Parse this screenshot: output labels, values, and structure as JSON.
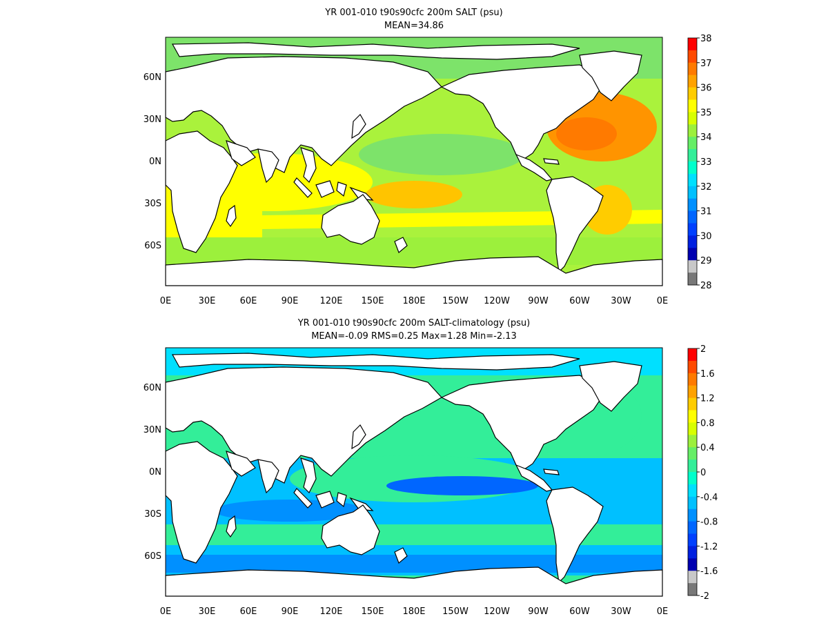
{
  "panels": [
    {
      "title": "YR 001-010 t90s90cfc 200m SALT (psu)",
      "stats": "MEAN=34.86",
      "x_ticks": [
        "0E",
        "30E",
        "60E",
        "90E",
        "120E",
        "150E",
        "180E",
        "150W",
        "120W",
        "90W",
        "60W",
        "30W",
        "0E"
      ],
      "y_ticks": [
        "60N",
        "30N",
        "0N",
        "30S",
        "60S"
      ],
      "colorbar": {
        "labels": [
          "38",
          "37",
          "36",
          "35",
          "34",
          "33",
          "32",
          "31",
          "30",
          "29",
          "28"
        ],
        "colors_top_to_bottom": [
          "#ff0000",
          "#ff4a00",
          "#ff7a00",
          "#ffa200",
          "#ffcc00",
          "#ffff00",
          "#d8ff00",
          "#9cf03c",
          "#66ee66",
          "#33ee99",
          "#00ffcc",
          "#00e0ff",
          "#00c0ff",
          "#0090ff",
          "#0066ff",
          "#0040ff",
          "#0020e0",
          "#0000b0",
          "#c8c8c8",
          "#787878"
        ]
      },
      "fields": {
        "ocean": "#aaf23c",
        "band_south": "#ffff00",
        "atlantic": "#ff9400",
        "pacific_warm": "#ffc400",
        "arctic": "#7de36a"
      }
    },
    {
      "title": "YR 001-010 t90s90cfc 200m SALT-climatology (psu)",
      "stats": "MEAN=-0.09   RMS=0.25   Max=1.28   Min=-2.13",
      "x_ticks": [
        "0E",
        "30E",
        "60E",
        "90E",
        "120E",
        "150E",
        "180E",
        "150W",
        "120W",
        "90W",
        "60W",
        "30W",
        "0E"
      ],
      "y_ticks": [
        "60N",
        "30N",
        "0N",
        "30S",
        "60S"
      ],
      "colorbar": {
        "labels": [
          "2",
          "1.6",
          "1.2",
          "0.8",
          "0.4",
          "0",
          "-0.4",
          "-0.8",
          "-1.2",
          "-1.6",
          "-2"
        ],
        "colors_top_to_bottom": [
          "#ff0000",
          "#ff4a00",
          "#ff7a00",
          "#ffa200",
          "#ffcc00",
          "#ffff00",
          "#d8ff00",
          "#9cf03c",
          "#66ee66",
          "#33ee99",
          "#00ffcc",
          "#00e0ff",
          "#00c0ff",
          "#0090ff",
          "#0066ff",
          "#0040ff",
          "#0020e0",
          "#0000b0",
          "#c8c8c8",
          "#787878"
        ]
      },
      "fields": {
        "ocean": "#33ee99",
        "band_south": "#0090ff",
        "atlantic": "#00c0ff",
        "pacific_warm": "#0066ff",
        "arctic": "#00c0ff"
      }
    }
  ]
}
